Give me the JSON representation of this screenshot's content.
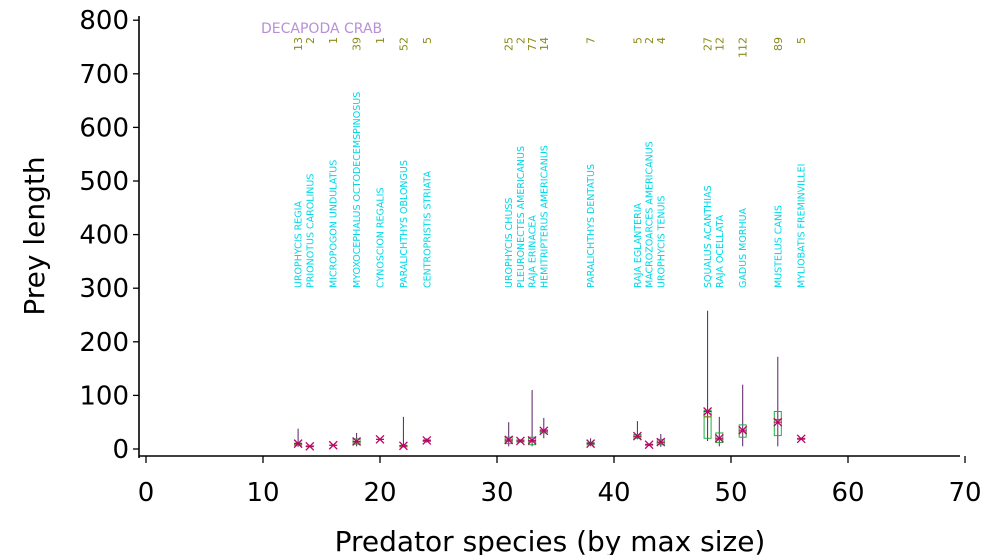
{
  "chart_data": {
    "type": "box",
    "title": "DECAPODA CRAB",
    "xlabel": "Predator species (by max size)",
    "ylabel": "Prey length",
    "xlim": [
      0,
      70
    ],
    "ylim": [
      0,
      800
    ],
    "x_ticks": [
      0,
      10,
      20,
      30,
      40,
      50,
      60,
      70
    ],
    "y_ticks": [
      0,
      100,
      200,
      300,
      400,
      500,
      600,
      700,
      800
    ],
    "colors": {
      "title": "#b98fd6",
      "species_label": "#00d8e8",
      "count_label": "#8a8a1a",
      "whisker": "#5a1f66",
      "box": "#20b040",
      "median": "#7a7a1a",
      "mean_marker": "#c0006a"
    },
    "species": [
      {
        "x": 13,
        "name": "UROPHYCIS REGIA",
        "n": "13",
        "min": 4,
        "q1": 7,
        "median": 9,
        "q3": 11,
        "max": 38,
        "mean": 10
      },
      {
        "x": 14,
        "name": "PRIONOTUS CAROLINUS",
        "n": "2",
        "min": 4,
        "q1": 5,
        "median": 5,
        "q3": 6,
        "max": 6,
        "mean": 5
      },
      {
        "x": 16,
        "name": "MICROPOGON UNDULATUS",
        "n": "1",
        "min": 7,
        "q1": 7,
        "median": 7,
        "q3": 7,
        "max": 7,
        "mean": 7
      },
      {
        "x": 18,
        "name": "MYOXOCEPHALUS OCTODECEMSPINOSUS",
        "n": "39",
        "min": 5,
        "q1": 9,
        "median": 13,
        "q3": 19,
        "max": 30,
        "mean": 14
      },
      {
        "x": 20,
        "name": "CYNOSCION REGALIS",
        "n": "1",
        "min": 18,
        "q1": 18,
        "median": 18,
        "q3": 18,
        "max": 18,
        "mean": 18
      },
      {
        "x": 22,
        "name": "PARALICHTHYS OBLONGUS",
        "n": "52",
        "min": 3,
        "q1": 4,
        "median": 5,
        "q3": 7,
        "max": 60,
        "mean": 6
      },
      {
        "x": 24,
        "name": "CENTROPRISTIS STRIATA",
        "n": "5",
        "min": 12,
        "q1": 14,
        "median": 15,
        "q3": 17,
        "max": 20,
        "mean": 16
      },
      {
        "x": 31,
        "name": "UROPHYCIS CHUSS",
        "n": "25",
        "min": 5,
        "q1": 10,
        "median": 15,
        "q3": 22,
        "max": 50,
        "mean": 17
      },
      {
        "x": 32,
        "name": "PLEURONECTES AMERICANUS",
        "n": "2",
        "min": 12,
        "q1": 13,
        "median": 15,
        "q3": 17,
        "max": 18,
        "mean": 15
      },
      {
        "x": 33,
        "name": "RAJA ERINACEA",
        "n": "77",
        "min": 5,
        "q1": 8,
        "median": 14,
        "q3": 22,
        "max": 110,
        "mean": 16
      },
      {
        "x": 34,
        "name": "HEMITRIPTERUS AMERICANUS",
        "n": "14",
        "min": 20,
        "q1": 30,
        "median": 33,
        "q3": 36,
        "max": 58,
        "mean": 34
      },
      {
        "x": 38,
        "name": "PARALICHTHYS DENTATUS",
        "n": "7",
        "min": 5,
        "q1": 8,
        "median": 10,
        "q3": 12,
        "max": 20,
        "mean": 10
      },
      {
        "x": 42,
        "name": "RAJA EGLANTERIA",
        "n": "5",
        "min": 18,
        "q1": 20,
        "median": 23,
        "q3": 27,
        "max": 52,
        "mean": 24
      },
      {
        "x": 43,
        "name": "MACROZOARCES AMERICANUS",
        "n": "2",
        "min": 6,
        "q1": 7,
        "median": 8,
        "q3": 9,
        "max": 10,
        "mean": 8
      },
      {
        "x": 44,
        "name": "UROPHYCIS TENUIS",
        "n": "4",
        "min": 4,
        "q1": 8,
        "median": 12,
        "q3": 18,
        "max": 28,
        "mean": 13
      },
      {
        "x": 48,
        "name": "SQUALUS ACANTHIAS",
        "n": "27",
        "min": 15,
        "q1": 20,
        "median": 60,
        "q3": 72,
        "max": 258,
        "mean": 70
      },
      {
        "x": 49,
        "name": "RAJA OCELLATA",
        "n": "12",
        "min": 5,
        "q1": 12,
        "median": 18,
        "q3": 30,
        "max": 60,
        "mean": 20
      },
      {
        "x": 51,
        "name": "GADUS MORHUA",
        "n": "112",
        "min": 5,
        "q1": 22,
        "median": 32,
        "q3": 45,
        "max": 120,
        "mean": 35
      },
      {
        "x": 54,
        "name": "MUSTELUS CANIS",
        "n": "89",
        "min": 5,
        "q1": 25,
        "median": 55,
        "q3": 70,
        "max": 172,
        "mean": 50
      },
      {
        "x": 56,
        "name": "MYLIOBATIS FREMINVILLEI",
        "n": "5",
        "min": 17,
        "q1": 18,
        "median": 19,
        "q3": 20,
        "max": 21,
        "mean": 19
      }
    ]
  }
}
